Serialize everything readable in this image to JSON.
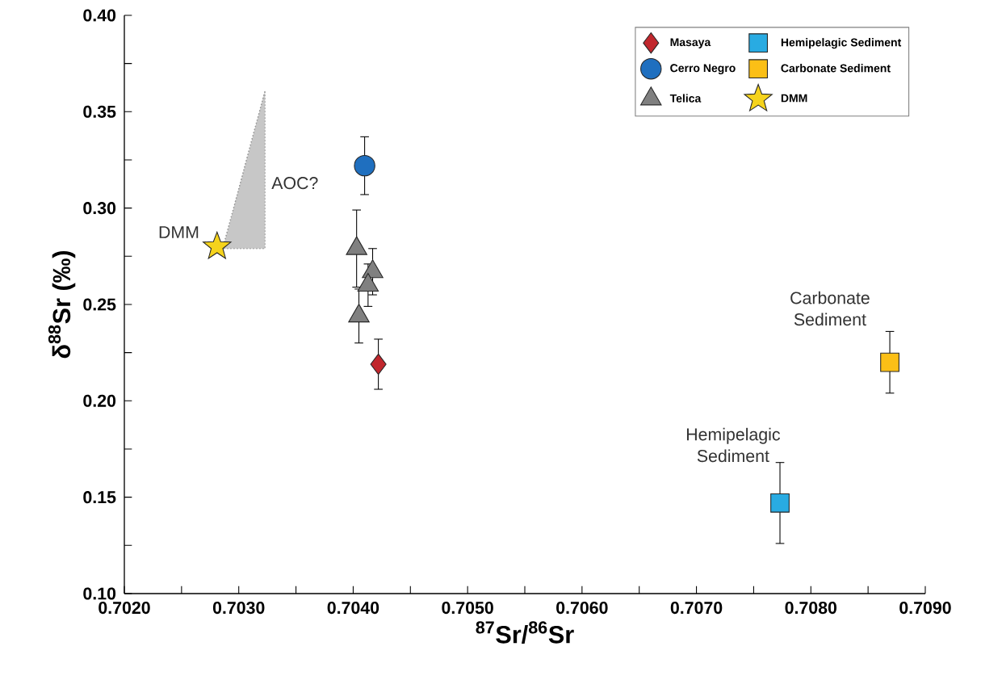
{
  "chart_data": {
    "type": "scatter",
    "xlabel": "$^{87}$Sr/$^{86}$Sr",
    "ylabel": "δ$^{88}$Sr (‰)",
    "xlim": [
      0.702,
      0.709
    ],
    "ylim": [
      0.1,
      0.4
    ],
    "xticks": [
      {
        "value": 0.702,
        "label": "0.7020"
      },
      {
        "value": 0.7025,
        "label": null
      },
      {
        "value": 0.703,
        "label": "0.7030"
      },
      {
        "value": 0.7035,
        "label": null
      },
      {
        "value": 0.704,
        "label": "0.7040"
      },
      {
        "value": 0.7045,
        "label": null
      },
      {
        "value": 0.705,
        "label": "0.7050"
      },
      {
        "value": 0.7055,
        "label": null
      },
      {
        "value": 0.706,
        "label": "0.7060"
      },
      {
        "value": 0.7065,
        "label": null
      },
      {
        "value": 0.707,
        "label": "0.7070"
      },
      {
        "value": 0.7075,
        "label": null
      },
      {
        "value": 0.708,
        "label": "0.7080"
      },
      {
        "value": 0.7085,
        "label": null
      },
      {
        "value": 0.709,
        "label": "0.7090"
      }
    ],
    "yticks": [
      {
        "value": 0.1,
        "label": "0.10"
      },
      {
        "value": 0.125,
        "label": null
      },
      {
        "value": 0.15,
        "label": "0.15"
      },
      {
        "value": 0.175,
        "label": null
      },
      {
        "value": 0.2,
        "label": "0.20"
      },
      {
        "value": 0.225,
        "label": null
      },
      {
        "value": 0.25,
        "label": "0.25"
      },
      {
        "value": 0.275,
        "label": null
      },
      {
        "value": 0.3,
        "label": "0.30"
      },
      {
        "value": 0.325,
        "label": null
      },
      {
        "value": 0.35,
        "label": "0.35"
      },
      {
        "value": 0.375,
        "label": null
      },
      {
        "value": 0.4,
        "label": "0.40"
      }
    ],
    "legend": "top right",
    "series": [
      {
        "type": "line",
        "color": "#9a9a9a",
        "line_style": "dotted",
        "x": [
          0.70286,
          0.70323
        ],
        "values": [
          0.279,
          0.361
        ],
        "lower": [
          0.279,
          0.279
        ],
        "upper": [
          0.279,
          0.361
        ]
      },
      {
        "name": "Masaya",
        "color": "#c1272d",
        "marker": "diamond",
        "x": [
          0.70422
        ],
        "values": [
          0.219
        ],
        "errors": [
          0.013
        ]
      },
      {
        "name": "Cerro Negro",
        "color": "#1f6fbf",
        "marker": "circle",
        "x": [
          0.7041
        ],
        "values": [
          0.322
        ],
        "errors": [
          0.015
        ]
      },
      {
        "name": "Telica",
        "color": "#808080",
        "marker": "triangle",
        "x": [
          0.70403,
          0.70417,
          0.70413,
          0.70405
        ],
        "values": [
          0.279,
          0.267,
          0.26,
          0.244
        ],
        "errors": [
          0.02,
          0.012,
          0.011,
          0.014
        ]
      },
      {
        "name": "Hemipelagic Sediment",
        "color": "#29abe2",
        "marker": "square",
        "x": [
          0.70773
        ],
        "values": [
          0.147
        ],
        "errors": [
          0.021
        ]
      },
      {
        "name": "Carbonate Sediment",
        "color": "#fbbf16",
        "marker": "square",
        "x": [
          0.70869
        ],
        "values": [
          0.22
        ],
        "errors": [
          0.016
        ]
      },
      {
        "name": "DMM",
        "color": "#f5d31c",
        "marker": "star",
        "x": [
          0.70281
        ],
        "values": [
          0.28
        ]
      }
    ],
    "annotations": [
      "DMM",
      "AOC?",
      "Hemipelagic Sediment",
      "Carbonate Sediment"
    ]
  }
}
